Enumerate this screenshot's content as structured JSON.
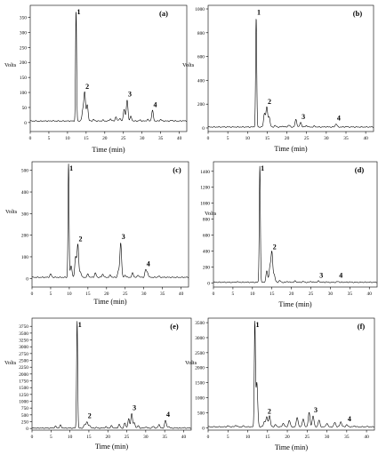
{
  "chart_data": [
    {
      "id": "a",
      "type": "line",
      "tag": "(a)",
      "xlabel": "Time (min)",
      "ylabel": "Volts",
      "xlim": [
        0,
        42
      ],
      "xticks": [
        0,
        5,
        10,
        15,
        20,
        25,
        30,
        35,
        40
      ],
      "ylim": [
        -30,
        390
      ],
      "yticks": [
        0,
        50,
        100,
        150,
        200,
        250,
        300,
        350
      ],
      "baseline": 5,
      "series": [
        {
          "peaks": [
            [
              2.5,
              4
            ],
            [
              6,
              6
            ],
            [
              12.3,
              370
            ],
            [
              14.1,
              40
            ],
            [
              14.6,
              100
            ],
            [
              15.3,
              60
            ],
            [
              17,
              10
            ],
            [
              19.5,
              8
            ],
            [
              21.5,
              12
            ],
            [
              23,
              18
            ],
            [
              24,
              14
            ],
            [
              25.2,
              45
            ],
            [
              26,
              75
            ],
            [
              27,
              20
            ],
            [
              29.5,
              8
            ],
            [
              31.5,
              10
            ],
            [
              32.8,
              40
            ],
            [
              35,
              10
            ],
            [
              38,
              8
            ],
            [
              41,
              6
            ]
          ]
        }
      ],
      "annotations": [
        {
          "label": "1",
          "x": 12.3,
          "y": 370
        },
        {
          "label": "2",
          "x": 14.6,
          "y": 100
        },
        {
          "label": "3",
          "x": 26,
          "y": 75
        },
        {
          "label": "4",
          "x": 32.8,
          "y": 40
        }
      ]
    },
    {
      "id": "b",
      "type": "line",
      "tag": "(b)",
      "xlabel": "Time (min)",
      "ylabel": "Volts",
      "xlim": [
        0,
        42
      ],
      "xticks": [
        0,
        5,
        10,
        15,
        20,
        25,
        30,
        35,
        40
      ],
      "ylim": [
        -30,
        1030
      ],
      "yticks": [
        0,
        200,
        400,
        600,
        800,
        1000
      ],
      "baseline": 8,
      "series": [
        {
          "peaks": [
            [
              5,
              8
            ],
            [
              12.2,
              920
            ],
            [
              14.3,
              120
            ],
            [
              14.9,
              170
            ],
            [
              15.5,
              90
            ],
            [
              17,
              20
            ],
            [
              19,
              15
            ],
            [
              20.5,
              25
            ],
            [
              22.3,
              70
            ],
            [
              23.5,
              45
            ],
            [
              25,
              20
            ],
            [
              27,
              15
            ],
            [
              30,
              10
            ],
            [
              32.5,
              35
            ],
            [
              35,
              12
            ],
            [
              38,
              8
            ]
          ]
        }
      ],
      "annotations": [
        {
          "label": "1",
          "x": 12.2,
          "y": 920
        },
        {
          "label": "2",
          "x": 14.9,
          "y": 170
        },
        {
          "label": "3",
          "x": 23.5,
          "y": 45
        },
        {
          "label": "4",
          "x": 32.5,
          "y": 35
        }
      ]
    },
    {
      "id": "c",
      "type": "line",
      "tag": "(c)",
      "xlabel": "Time (min)",
      "ylabel": "Volts",
      "xlim": [
        0,
        42
      ],
      "xticks": [
        0,
        5,
        10,
        15,
        20,
        25,
        30,
        35,
        40
      ],
      "ylim": [
        -40,
        540
      ],
      "yticks": [
        0,
        100,
        200,
        300,
        400,
        500
      ],
      "baseline": 5,
      "series": [
        {
          "peaks": [
            [
              5,
              20
            ],
            [
              9.8,
              530
            ],
            [
              10.5,
              60
            ],
            [
              11.7,
              100
            ],
            [
              12.3,
              155
            ],
            [
              13,
              30
            ],
            [
              15,
              20
            ],
            [
              17,
              25
            ],
            [
              19,
              20
            ],
            [
              21,
              15
            ],
            [
              23.2,
              35
            ],
            [
              23.8,
              165
            ],
            [
              25,
              15
            ],
            [
              27,
              25
            ],
            [
              28.5,
              15
            ],
            [
              30.5,
              40
            ],
            [
              31,
              25
            ],
            [
              34,
              10
            ]
          ]
        }
      ],
      "annotations": [
        {
          "label": "1",
          "x": 9.8,
          "y": 530
        },
        {
          "label": "2",
          "x": 12.3,
          "y": 155
        },
        {
          "label": "3",
          "x": 23.8,
          "y": 165
        },
        {
          "label": "4",
          "x": 30.5,
          "y": 40
        }
      ]
    },
    {
      "id": "d",
      "type": "line",
      "tag": "(d)",
      "xlabel": "Time (min)",
      "ylabel": "Volts",
      "xlim": [
        0,
        42
      ],
      "xticks": [
        0,
        5,
        10,
        15,
        20,
        25,
        30,
        35,
        40
      ],
      "ylim": [
        -50,
        1520
      ],
      "yticks": [
        0,
        200,
        400,
        600,
        800,
        1000,
        1200,
        1400
      ],
      "baseline": 10,
      "series": [
        {
          "peaks": [
            [
              6,
              15
            ],
            [
              11.9,
              1470
            ],
            [
              13.7,
              150
            ],
            [
              14.5,
              200
            ],
            [
              15,
              380
            ],
            [
              15.6,
              100
            ],
            [
              17,
              30
            ],
            [
              19,
              20
            ],
            [
              21,
              25
            ],
            [
              23,
              20
            ],
            [
              25,
              20
            ],
            [
              27,
              25
            ],
            [
              29,
              15
            ],
            [
              32,
              20
            ],
            [
              35,
              15
            ],
            [
              38,
              10
            ]
          ]
        }
      ],
      "annotations": [
        {
          "label": "1",
          "x": 11.9,
          "y": 1470
        },
        {
          "label": "2",
          "x": 15,
          "y": 380
        },
        {
          "label": "3",
          "x": 27,
          "y": 25
        },
        {
          "label": "4",
          "x": 32,
          "y": 20
        }
      ]
    },
    {
      "id": "e",
      "type": "line",
      "tag": "(e)",
      "xlabel": "Time (min)",
      "ylabel": "Volts",
      "xlim": [
        0,
        42
      ],
      "xticks": [
        0,
        5,
        10,
        15,
        20,
        25,
        30,
        35,
        40
      ],
      "ylim": [
        -60,
        4050
      ],
      "yticks": [
        0,
        250,
        500,
        750,
        1000,
        1250,
        1500,
        1750,
        2000,
        2250,
        2500,
        2750,
        3000,
        3250,
        3500,
        3750
      ],
      "baseline": 15,
      "series": [
        {
          "peaks": [
            [
              6.2,
              80
            ],
            [
              7.5,
              120
            ],
            [
              11.9,
              3950
            ],
            [
              13.9,
              150
            ],
            [
              14.5,
              250
            ],
            [
              15.2,
              120
            ],
            [
              17,
              40
            ],
            [
              19.5,
              60
            ],
            [
              21,
              100
            ],
            [
              23,
              150
            ],
            [
              24.5,
              200
            ],
            [
              25.5,
              350
            ],
            [
              26.3,
              550
            ],
            [
              27,
              200
            ],
            [
              28,
              100
            ],
            [
              30,
              60
            ],
            [
              32,
              80
            ],
            [
              33.5,
              150
            ],
            [
              35.2,
              300
            ],
            [
              36,
              80
            ],
            [
              38,
              30
            ],
            [
              40,
              25
            ]
          ]
        }
      ],
      "annotations": [
        {
          "label": "1",
          "x": 11.9,
          "y": 3950
        },
        {
          "label": "2",
          "x": 14.5,
          "y": 250
        },
        {
          "label": "3",
          "x": 26.3,
          "y": 550
        },
        {
          "label": "4",
          "x": 35.2,
          "y": 300
        }
      ]
    },
    {
      "id": "f",
      "type": "line",
      "tag": "(f)",
      "xlabel": "Time (min)",
      "ylabel": "Volts",
      "xlim": [
        0,
        42
      ],
      "xticks": [
        0,
        5,
        10,
        15,
        20,
        25,
        30,
        35,
        40
      ],
      "ylim": [
        -80,
        3650
      ],
      "yticks": [
        0,
        500,
        1000,
        1500,
        2000,
        2500,
        3000,
        3500
      ],
      "baseline": 30,
      "series": [
        {
          "peaks": [
            [
              5,
              60
            ],
            [
              7,
              80
            ],
            [
              9,
              60
            ],
            [
              11.8,
              3450
            ],
            [
              12.3,
              1500
            ],
            [
              14.2,
              200
            ],
            [
              14.8,
              350
            ],
            [
              15.5,
              400
            ],
            [
              17,
              100
            ],
            [
              19,
              150
            ],
            [
              20.5,
              250
            ],
            [
              22.5,
              350
            ],
            [
              24,
              300
            ],
            [
              25.5,
              500
            ],
            [
              26.5,
              400
            ],
            [
              28,
              250
            ],
            [
              30,
              150
            ],
            [
              32,
              180
            ],
            [
              33.5,
              200
            ],
            [
              35,
              100
            ],
            [
              37,
              60
            ],
            [
              40,
              40
            ]
          ]
        }
      ],
      "annotations": [
        {
          "label": "1",
          "x": 11.8,
          "y": 3450
        },
        {
          "label": "2",
          "x": 14.8,
          "y": 350
        },
        {
          "label": "3",
          "x": 26.5,
          "y": 400
        },
        {
          "label": "4",
          "x": 35,
          "y": 100
        }
      ]
    }
  ]
}
